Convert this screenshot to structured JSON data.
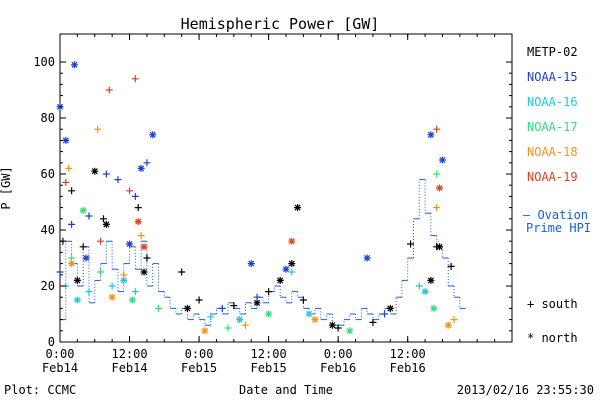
{
  "chart_data": {
    "type": "scatter",
    "title": "Hemispheric Power [GW]",
    "xlabel": "Date and Time",
    "ylabel": "P [GW]",
    "xlim": [
      "2013-02-14 00:00",
      "2013-02-17 06:00"
    ],
    "ylim": [
      0,
      110
    ],
    "x_tick_labels": [
      {
        "x": "2013-02-14 00:00",
        "line1": "0:00",
        "line2": "Feb14"
      },
      {
        "x": "2013-02-14 12:00",
        "line1": "12:00",
        "line2": "Feb14"
      },
      {
        "x": "2013-02-15 00:00",
        "line1": "0:00",
        "line2": "Feb15"
      },
      {
        "x": "2013-02-15 12:00",
        "line1": "12:00",
        "line2": "Feb15"
      },
      {
        "x": "2013-02-16 00:00",
        "line1": "0:00",
        "line2": "Feb16"
      },
      {
        "x": "2013-02-16 12:00",
        "line1": "12:00",
        "line2": "Feb16"
      }
    ],
    "y_ticks": [
      0,
      20,
      40,
      60,
      80,
      100
    ],
    "legend": {
      "placement": "right",
      "entries": [
        {
          "name": "METP-02",
          "color": "#000000"
        },
        {
          "name": "NOAA-15",
          "color": "#1a3fd6"
        },
        {
          "name": "NOAA-16",
          "color": "#22c8d8"
        },
        {
          "name": "NOAA-17",
          "color": "#33e07a"
        },
        {
          "name": "NOAA-18",
          "color": "#f0931e"
        },
        {
          "name": "NOAA-19",
          "color": "#e0401a"
        }
      ],
      "ovation_label_1": "— Ovation",
      "ovation_label_2": "Prime HPI",
      "ovation_color": "#1a5fd6",
      "south_label": "+ south",
      "north_label": "* north"
    },
    "footer": {
      "left": "Plot: CCMC",
      "right": "2013/02/16 23:55:30"
    },
    "ovation_hpi": [
      {
        "x": "2013-02-14 00:00",
        "y": 8
      },
      {
        "x": "2013-02-14 01:00",
        "y": 36
      },
      {
        "x": "2013-02-14 02:00",
        "y": 28
      },
      {
        "x": "2013-02-14 03:00",
        "y": 20
      },
      {
        "x": "2013-02-14 04:00",
        "y": 34
      },
      {
        "x": "2013-02-14 05:00",
        "y": 14
      },
      {
        "x": "2013-02-14 06:00",
        "y": 22
      },
      {
        "x": "2013-02-14 07:00",
        "y": 28
      },
      {
        "x": "2013-02-14 08:00",
        "y": 36
      },
      {
        "x": "2013-02-14 09:00",
        "y": 26
      },
      {
        "x": "2013-02-14 10:00",
        "y": 18
      },
      {
        "x": "2013-02-14 11:00",
        "y": 28
      },
      {
        "x": "2013-02-14 12:00",
        "y": 34
      },
      {
        "x": "2013-02-14 13:00",
        "y": 26
      },
      {
        "x": "2013-02-14 14:00",
        "y": 36
      },
      {
        "x": "2013-02-14 15:00",
        "y": 20
      },
      {
        "x": "2013-02-14 16:00",
        "y": 28
      },
      {
        "x": "2013-02-14 17:00",
        "y": 18
      },
      {
        "x": "2013-02-14 18:00",
        "y": 16
      },
      {
        "x": "2013-02-14 19:00",
        "y": 12
      },
      {
        "x": "2013-02-14 20:00",
        "y": 10
      },
      {
        "x": "2013-02-14 21:00",
        "y": 12
      },
      {
        "x": "2013-02-14 22:00",
        "y": 8
      },
      {
        "x": "2013-02-14 23:00",
        "y": 10
      },
      {
        "x": "2013-02-15 00:00",
        "y": 8
      },
      {
        "x": "2013-02-15 01:00",
        "y": 6
      },
      {
        "x": "2013-02-15 02:00",
        "y": 10
      },
      {
        "x": "2013-02-15 03:00",
        "y": 12
      },
      {
        "x": "2013-02-15 04:00",
        "y": 10
      },
      {
        "x": "2013-02-15 05:00",
        "y": 14
      },
      {
        "x": "2013-02-15 06:00",
        "y": 12
      },
      {
        "x": "2013-02-15 07:00",
        "y": 10
      },
      {
        "x": "2013-02-15 08:00",
        "y": 14
      },
      {
        "x": "2013-02-15 09:00",
        "y": 12
      },
      {
        "x": "2013-02-15 10:00",
        "y": 16
      },
      {
        "x": "2013-02-15 11:00",
        "y": 14
      },
      {
        "x": "2013-02-15 12:00",
        "y": 18
      },
      {
        "x": "2013-02-15 13:00",
        "y": 20
      },
      {
        "x": "2013-02-15 14:00",
        "y": 16
      },
      {
        "x": "2013-02-15 15:00",
        "y": 14
      },
      {
        "x": "2013-02-15 16:00",
        "y": 18
      },
      {
        "x": "2013-02-15 17:00",
        "y": 16
      },
      {
        "x": "2013-02-15 18:00",
        "y": 12
      },
      {
        "x": "2013-02-15 19:00",
        "y": 10
      },
      {
        "x": "2013-02-15 20:00",
        "y": 12
      },
      {
        "x": "2013-02-15 21:00",
        "y": 8
      },
      {
        "x": "2013-02-15 22:00",
        "y": 10
      },
      {
        "x": "2013-02-15 23:00",
        "y": 6
      },
      {
        "x": "2013-02-16 00:00",
        "y": 6
      },
      {
        "x": "2013-02-16 01:00",
        "y": 8
      },
      {
        "x": "2013-02-16 02:00",
        "y": 10
      },
      {
        "x": "2013-02-16 03:00",
        "y": 8
      },
      {
        "x": "2013-02-16 04:00",
        "y": 12
      },
      {
        "x": "2013-02-16 05:00",
        "y": 10
      },
      {
        "x": "2013-02-16 06:00",
        "y": 8
      },
      {
        "x": "2013-02-16 07:00",
        "y": 10
      },
      {
        "x": "2013-02-16 08:00",
        "y": 12
      },
      {
        "x": "2013-02-16 09:00",
        "y": 10
      },
      {
        "x": "2013-02-16 10:00",
        "y": 16
      },
      {
        "x": "2013-02-16 11:00",
        "y": 22
      },
      {
        "x": "2013-02-16 12:00",
        "y": 30
      },
      {
        "x": "2013-02-16 13:00",
        "y": 44
      },
      {
        "x": "2013-02-16 14:00",
        "y": 58
      },
      {
        "x": "2013-02-16 15:00",
        "y": 46
      },
      {
        "x": "2013-02-16 16:00",
        "y": 38
      },
      {
        "x": "2013-02-16 17:00",
        "y": 34
      },
      {
        "x": "2013-02-16 18:00",
        "y": 30
      },
      {
        "x": "2013-02-16 19:00",
        "y": 20
      },
      {
        "x": "2013-02-16 20:00",
        "y": 16
      },
      {
        "x": "2013-02-16 21:00",
        "y": 12
      }
    ],
    "series": [
      {
        "name": "METP-02",
        "hemisphere": "south",
        "points": [
          {
            "x": "2013-02-14 00:30",
            "y": 36
          },
          {
            "x": "2013-02-14 02:00",
            "y": 54
          },
          {
            "x": "2013-02-14 04:00",
            "y": 34
          },
          {
            "x": "2013-02-14 07:30",
            "y": 44
          },
          {
            "x": "2013-02-14 13:30",
            "y": 48
          },
          {
            "x": "2013-02-14 15:00",
            "y": 30
          },
          {
            "x": "2013-02-14 21:00",
            "y": 25
          },
          {
            "x": "2013-02-15 00:00",
            "y": 15
          },
          {
            "x": "2013-02-15 06:00",
            "y": 13
          },
          {
            "x": "2013-02-15 12:00",
            "y": 18
          },
          {
            "x": "2013-02-15 18:00",
            "y": 15
          },
          {
            "x": "2013-02-16 00:00",
            "y": 5
          },
          {
            "x": "2013-02-16 06:00",
            "y": 7
          },
          {
            "x": "2013-02-16 12:30",
            "y": 35
          },
          {
            "x": "2013-02-16 17:00",
            "y": 34
          },
          {
            "x": "2013-02-16 19:30",
            "y": 27
          }
        ]
      },
      {
        "name": "METP-02",
        "hemisphere": "north",
        "points": [
          {
            "x": "2013-02-14 03:00",
            "y": 22
          },
          {
            "x": "2013-02-14 06:00",
            "y": 61
          },
          {
            "x": "2013-02-14 08:00",
            "y": 42
          },
          {
            "x": "2013-02-14 14:30",
            "y": 25
          },
          {
            "x": "2013-02-14 22:00",
            "y": 12
          },
          {
            "x": "2013-02-15 10:00",
            "y": 14
          },
          {
            "x": "2013-02-15 14:00",
            "y": 22
          },
          {
            "x": "2013-02-15 16:00",
            "y": 28
          },
          {
            "x": "2013-02-15 17:00",
            "y": 48
          },
          {
            "x": "2013-02-15 23:00",
            "y": 6
          },
          {
            "x": "2013-02-16 09:00",
            "y": 12
          },
          {
            "x": "2013-02-16 16:00",
            "y": 22
          },
          {
            "x": "2013-02-16 17:30",
            "y": 34
          }
        ]
      },
      {
        "name": "NOAA-15",
        "hemisphere": "south",
        "points": [
          {
            "x": "2013-02-14 00:00",
            "y": 25
          },
          {
            "x": "2013-02-14 02:00",
            "y": 42
          },
          {
            "x": "2013-02-14 05:00",
            "y": 45
          },
          {
            "x": "2013-02-14 08:00",
            "y": 60
          },
          {
            "x": "2013-02-14 10:00",
            "y": 58
          },
          {
            "x": "2013-02-14 13:00",
            "y": 52
          },
          {
            "x": "2013-02-14 15:00",
            "y": 64
          },
          {
            "x": "2013-02-15 04:00",
            "y": 12
          },
          {
            "x": "2013-02-15 10:00",
            "y": 16
          },
          {
            "x": "2013-02-16 08:00",
            "y": 10
          }
        ]
      },
      {
        "name": "NOAA-15",
        "hemisphere": "north",
        "points": [
          {
            "x": "2013-02-14 00:00",
            "y": 84
          },
          {
            "x": "2013-02-14 01:00",
            "y": 72
          },
          {
            "x": "2013-02-14 02:30",
            "y": 99
          },
          {
            "x": "2013-02-14 04:30",
            "y": 30
          },
          {
            "x": "2013-02-14 12:00",
            "y": 35
          },
          {
            "x": "2013-02-14 14:00",
            "y": 62
          },
          {
            "x": "2013-02-14 16:00",
            "y": 74
          },
          {
            "x": "2013-02-15 09:00",
            "y": 28
          },
          {
            "x": "2013-02-15 15:00",
            "y": 26
          },
          {
            "x": "2013-02-16 05:00",
            "y": 30
          },
          {
            "x": "2013-02-16 16:00",
            "y": 74
          },
          {
            "x": "2013-02-16 18:00",
            "y": 65
          }
        ]
      },
      {
        "name": "NOAA-16",
        "hemisphere": "south",
        "points": [
          {
            "x": "2013-02-14 01:00",
            "y": 20
          },
          {
            "x": "2013-02-14 05:00",
            "y": 18
          },
          {
            "x": "2013-02-14 09:00",
            "y": 20
          },
          {
            "x": "2013-02-14 13:00",
            "y": 18
          },
          {
            "x": "2013-02-15 02:00",
            "y": 9
          },
          {
            "x": "2013-02-15 16:00",
            "y": 25
          },
          {
            "x": "2013-02-16 14:00",
            "y": 20
          }
        ]
      },
      {
        "name": "NOAA-16",
        "hemisphere": "north",
        "points": [
          {
            "x": "2013-02-14 03:00",
            "y": 15
          },
          {
            "x": "2013-02-14 11:00",
            "y": 22
          },
          {
            "x": "2013-02-15 07:00",
            "y": 8
          },
          {
            "x": "2013-02-15 19:00",
            "y": 10
          },
          {
            "x": "2013-02-16 15:00",
            "y": 18
          }
        ]
      },
      {
        "name": "NOAA-17",
        "hemisphere": "south",
        "points": [
          {
            "x": "2013-02-14 02:00",
            "y": 30
          },
          {
            "x": "2013-02-14 07:00",
            "y": 25
          },
          {
            "x": "2013-02-14 17:00",
            "y": 12
          },
          {
            "x": "2013-02-15 05:00",
            "y": 5
          },
          {
            "x": "2013-02-16 17:00",
            "y": 60
          }
        ]
      },
      {
        "name": "NOAA-17",
        "hemisphere": "north",
        "points": [
          {
            "x": "2013-02-14 04:00",
            "y": 47
          },
          {
            "x": "2013-02-14 12:30",
            "y": 15
          },
          {
            "x": "2013-02-15 12:00",
            "y": 10
          },
          {
            "x": "2013-02-16 02:00",
            "y": 4
          },
          {
            "x": "2013-02-16 16:30",
            "y": 12
          }
        ]
      },
      {
        "name": "NOAA-18",
        "hemisphere": "south",
        "points": [
          {
            "x": "2013-02-14 01:30",
            "y": 62
          },
          {
            "x": "2013-02-14 06:30",
            "y": 76
          },
          {
            "x": "2013-02-14 11:00",
            "y": 24
          },
          {
            "x": "2013-02-14 14:00",
            "y": 38
          },
          {
            "x": "2013-02-15 08:00",
            "y": 6
          },
          {
            "x": "2013-02-16 17:00",
            "y": 48
          },
          {
            "x": "2013-02-16 20:00",
            "y": 8
          }
        ]
      },
      {
        "name": "NOAA-18",
        "hemisphere": "north",
        "points": [
          {
            "x": "2013-02-14 02:00",
            "y": 28
          },
          {
            "x": "2013-02-14 09:00",
            "y": 16
          },
          {
            "x": "2013-02-15 01:00",
            "y": 4
          },
          {
            "x": "2013-02-15 20:00",
            "y": 8
          },
          {
            "x": "2013-02-16 19:00",
            "y": 6
          }
        ]
      },
      {
        "name": "NOAA-19",
        "hemisphere": "south",
        "points": [
          {
            "x": "2013-02-14 01:00",
            "y": 57
          },
          {
            "x": "2013-02-14 07:00",
            "y": 36
          },
          {
            "x": "2013-02-14 08:30",
            "y": 90
          },
          {
            "x": "2013-02-14 12:00",
            "y": 54
          },
          {
            "x": "2013-02-14 13:00",
            "y": 94
          },
          {
            "x": "2013-02-16 17:00",
            "y": 76
          }
        ]
      },
      {
        "name": "NOAA-19",
        "hemisphere": "north",
        "points": [
          {
            "x": "2013-02-14 13:30",
            "y": 43
          },
          {
            "x": "2013-02-14 14:30",
            "y": 34
          },
          {
            "x": "2013-02-15 16:00",
            "y": 36
          },
          {
            "x": "2013-02-16 17:30",
            "y": 55
          }
        ]
      }
    ]
  }
}
